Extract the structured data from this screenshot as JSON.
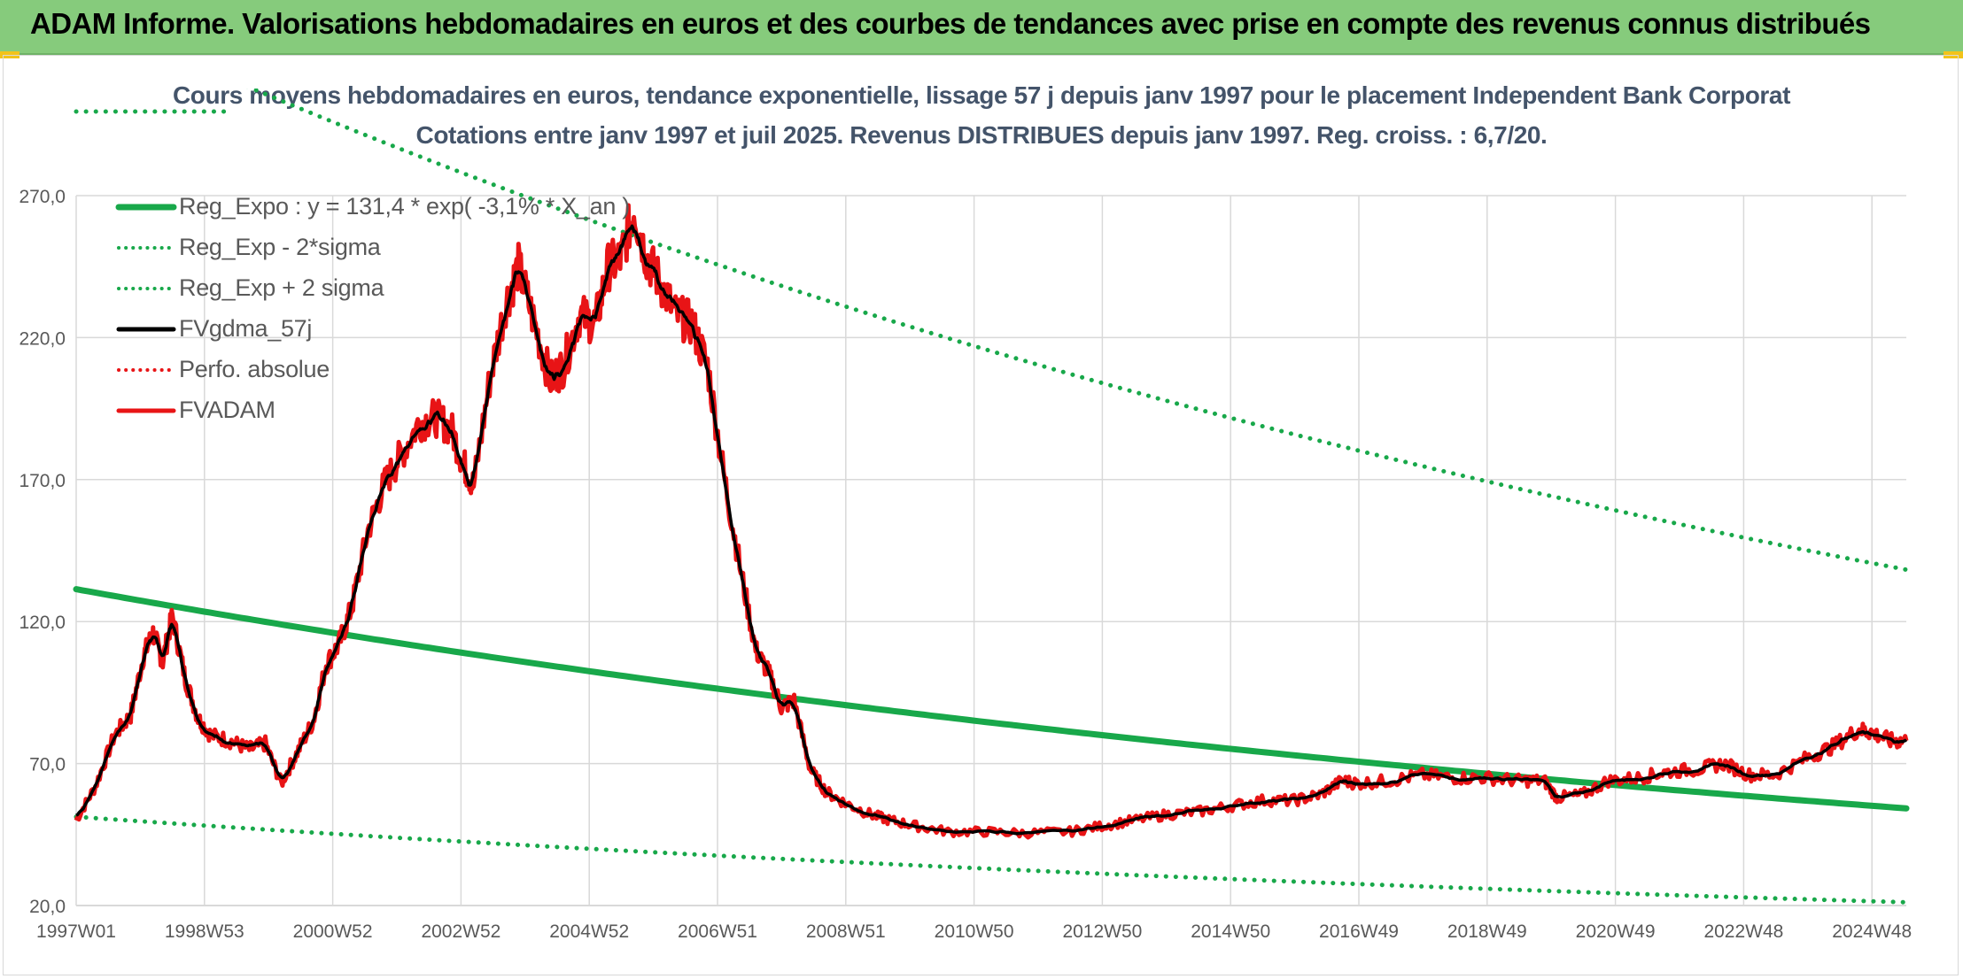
{
  "banner": {
    "title": "ADAM Informe. Valorisations hebdomadaires en euros et des courbes de tendances avec prise en compte des revenus connus distribués",
    "background": "#86cb7c",
    "corner_color": "#f2c31a"
  },
  "chart_data": {
    "type": "line",
    "title": "Cours moyens hebdomadaires en euros, tendance exponentielle, lissage 57 j depuis janv 1997 pour le placement Independent Bank Corporat",
    "subtitle": "Cotations entre janv 1997 et juil 2025. Revenus DISTRIBUES depuis janv 1997. Reg. croiss. : 6,7/20.",
    "xlabel": "",
    "ylabel": "",
    "x_ticks": [
      "1997W01",
      "1998W53",
      "2000W52",
      "2002W52",
      "2004W52",
      "2006W51",
      "2008W51",
      "2010W50",
      "2012W50",
      "2014W50",
      "2016W49",
      "2018W49",
      "2020W49",
      "2022W48",
      "2024W48"
    ],
    "y_ticks": [
      "20,0",
      "70,0",
      "120,0",
      "170,0",
      "220,0",
      "270,0"
    ],
    "x_range": [
      1997.0,
      2025.55
    ],
    "ylim": [
      20,
      270
    ],
    "grid": true,
    "legend_position": "top-left",
    "regression": {
      "a": 131.4,
      "rate": -0.031,
      "sigma_low_factor": 0.39,
      "sigma_high_factor": 2.55
    },
    "series": [
      {
        "name": "Reg_Expo : y = 131,4 * exp( -3,1% * X_an )",
        "color": "#18a84a",
        "style": "solid",
        "kind": "expo",
        "factor": 1.0
      },
      {
        "name": "Reg_Exp - 2*sigma",
        "color": "#18a84a",
        "style": "dotted",
        "kind": "expo",
        "factor": 0.39
      },
      {
        "name": "Reg_Exp + 2 sigma",
        "color": "#18a84a",
        "style": "dotted",
        "kind": "expo",
        "factor": 2.55
      },
      {
        "name": "FVgdma_57j",
        "color": "#000000",
        "style": "solid",
        "kind": "smooth"
      },
      {
        "name": "Perfo. absolue",
        "color": "#e81416",
        "style": "dotted",
        "kind": "none"
      },
      {
        "name": "FVADAM",
        "color": "#e81416",
        "style": "solid",
        "kind": "price"
      }
    ],
    "price_points": [
      [
        1997.0,
        50
      ],
      [
        1997.3,
        62
      ],
      [
        1997.6,
        80
      ],
      [
        1997.85,
        87
      ],
      [
        1998.05,
        108
      ],
      [
        1998.2,
        116
      ],
      [
        1998.35,
        106
      ],
      [
        1998.5,
        122
      ],
      [
        1998.7,
        100
      ],
      [
        1998.9,
        86
      ],
      [
        1999.1,
        80
      ],
      [
        1999.4,
        78
      ],
      [
        1999.7,
        75
      ],
      [
        1999.95,
        77
      ],
      [
        2000.2,
        63
      ],
      [
        2000.45,
        74
      ],
      [
        2000.7,
        85
      ],
      [
        2000.9,
        105
      ],
      [
        2001.1,
        112
      ],
      [
        2001.3,
        125
      ],
      [
        2001.55,
        152
      ],
      [
        2001.8,
        168
      ],
      [
        2002.05,
        178
      ],
      [
        2002.35,
        190
      ],
      [
        2002.6,
        192
      ],
      [
        2002.85,
        188
      ],
      [
        2003.05,
        175
      ],
      [
        2003.2,
        168
      ],
      [
        2003.45,
        205
      ],
      [
        2003.7,
        232
      ],
      [
        2003.9,
        245
      ],
      [
        2004.15,
        225
      ],
      [
        2004.4,
        205
      ],
      [
        2004.6,
        210
      ],
      [
        2004.85,
        228
      ],
      [
        2005.1,
        225
      ],
      [
        2005.3,
        245
      ],
      [
        2005.5,
        248
      ],
      [
        2005.7,
        265
      ],
      [
        2005.9,
        248
      ],
      [
        2006.1,
        240
      ],
      [
        2006.35,
        228
      ],
      [
        2006.6,
        225
      ],
      [
        2006.85,
        210
      ],
      [
        2007.1,
        172
      ],
      [
        2007.35,
        140
      ],
      [
        2007.6,
        110
      ],
      [
        2007.8,
        102
      ],
      [
        2008.0,
        90
      ],
      [
        2008.2,
        92
      ],
      [
        2008.45,
        68
      ],
      [
        2008.7,
        60
      ],
      [
        2009.0,
        56
      ],
      [
        2009.4,
        52
      ],
      [
        2009.7,
        50
      ],
      [
        2010.1,
        48
      ],
      [
        2010.6,
        46
      ],
      [
        2011.2,
        46
      ],
      [
        2011.8,
        45.5
      ],
      [
        2012.5,
        46
      ],
      [
        2013.0,
        48
      ],
      [
        2013.5,
        50
      ],
      [
        2014.0,
        52
      ],
      [
        2014.5,
        53
      ],
      [
        2015.0,
        55
      ],
      [
        2015.5,
        57
      ],
      [
        2016.0,
        57
      ],
      [
        2016.4,
        59
      ],
      [
        2016.75,
        64
      ],
      [
        2017.0,
        63
      ],
      [
        2017.5,
        64
      ],
      [
        2018.0,
        66
      ],
      [
        2018.5,
        65
      ],
      [
        2019.0,
        65
      ],
      [
        2019.5,
        64
      ],
      [
        2019.9,
        64
      ],
      [
        2020.1,
        58
      ],
      [
        2020.5,
        59
      ],
      [
        2020.9,
        64
      ],
      [
        2021.4,
        65
      ],
      [
        2021.8,
        67
      ],
      [
        2022.3,
        68
      ],
      [
        2022.7,
        70
      ],
      [
        2023.1,
        66
      ],
      [
        2023.5,
        66
      ],
      [
        2024.0,
        72
      ],
      [
        2024.4,
        76
      ],
      [
        2024.8,
        82
      ],
      [
        2025.0,
        81
      ],
      [
        2025.3,
        78
      ],
      [
        2025.55,
        78
      ]
    ]
  }
}
